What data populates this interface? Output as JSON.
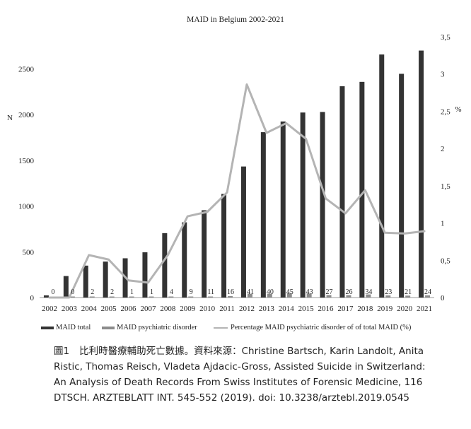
{
  "chart_data": {
    "type": "bar",
    "title": "MAID in Belgium 2002-2021",
    "ylabel": "N",
    "y2label": "%",
    "ylim": [
      0,
      2850
    ],
    "y2lim": [
      0,
      3.5
    ],
    "yticks": [
      0,
      500,
      1000,
      1500,
      2000,
      2500
    ],
    "yticks_labels": [
      "0",
      "500",
      "1000",
      "1500",
      "2000",
      "2500"
    ],
    "y2ticks": [
      0,
      0.5,
      1,
      1.5,
      2,
      2.5,
      3,
      3.5
    ],
    "y2ticks_labels": [
      "0",
      "0,5",
      "1",
      "1,5",
      "2",
      "2,5",
      "3",
      "3,5"
    ],
    "categories": [
      "2002",
      "2003",
      "2004",
      "2005",
      "2006",
      "2007",
      "2008",
      "2009",
      "2010",
      "2011",
      "2012",
      "2013",
      "2014",
      "2015",
      "2016",
      "2017",
      "2018",
      "2019",
      "2020",
      "2021"
    ],
    "series": [
      {
        "name": "MAID total",
        "color": "#333333",
        "axis": "left",
        "kind": "bar",
        "values": [
          24,
          235,
          349,
          393,
          429,
          495,
          704,
          822,
          954,
          1133,
          1432,
          1807,
          1924,
          2022,
          2028,
          2309,
          2357,
          2656,
          2445,
          2699
        ]
      },
      {
        "name": "MAID psychiatric disorder",
        "color": "#8c8c8c",
        "axis": "left",
        "kind": "bar",
        "values": [
          0,
          0,
          2,
          2,
          1,
          1,
          4,
          9,
          11,
          16,
          41,
          40,
          45,
          43,
          27,
          26,
          34,
          23,
          21,
          24
        ],
        "labels": [
          "0",
          "0",
          "2",
          "2",
          "1",
          "1",
          "4",
          "9",
          "11",
          "16",
          "41",
          "40",
          "45",
          "43",
          "27",
          "26",
          "34",
          "23",
          "21",
          "24"
        ]
      },
      {
        "name": "Percentage MAID psychiatric disorder of of total MAID (%)",
        "color": "#b4b4b4",
        "axis": "right",
        "kind": "line",
        "values": [
          0,
          0,
          0.57,
          0.51,
          0.23,
          0.2,
          0.57,
          1.09,
          1.15,
          1.41,
          2.86,
          2.21,
          2.34,
          2.13,
          1.33,
          1.13,
          1.44,
          0.87,
          0.86,
          0.89
        ]
      }
    ]
  },
  "caption": {
    "figure_number": "圖1",
    "text": "比利時醫療輔助死亡數據。資料來源：Christine Bartsch, Karin Landolt, Anita Ristic, Thomas Reisch, Vladeta Ajdacic-Gross, Assisted Suicide in Switzerland: An Analysis of Death Records From Swiss Institutes of Forensic Medicine, 116 DTSCH. ARZTEBLATT INT. 545-552 (2019). doi: 10.3238/arztebl.2019.0545"
  }
}
